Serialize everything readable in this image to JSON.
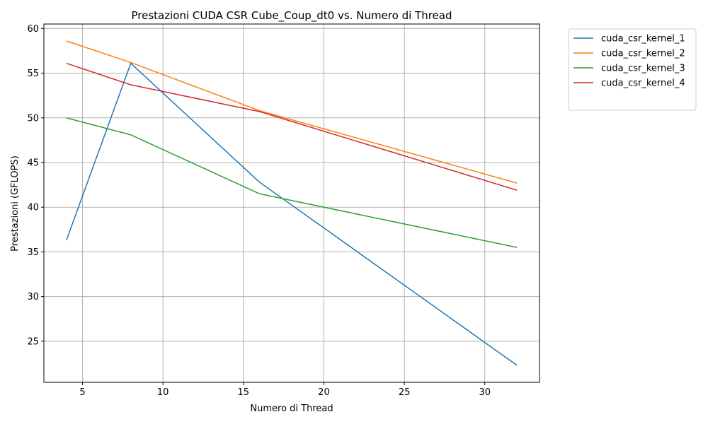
{
  "chart_data": {
    "type": "line",
    "title": "Prestazioni CUDA CSR Cube_Coup_dt0 vs. Numero di Thread",
    "xlabel": "Numero di Thread",
    "ylabel": "Prestazioni (GFLOPS)",
    "x": [
      4,
      8,
      16,
      32
    ],
    "xlim": [
      2.6,
      33.4
    ],
    "ylim": [
      20.4,
      60.5
    ],
    "xticks": [
      5,
      10,
      15,
      20,
      25,
      30
    ],
    "yticks": [
      25,
      30,
      35,
      40,
      45,
      50,
      55,
      60
    ],
    "grid": true,
    "legend_position": "outside-top-right",
    "series": [
      {
        "name": "cuda_csr_kernel_1",
        "color": "#1f77b4",
        "values": [
          36.3,
          56.1,
          42.8,
          22.3
        ]
      },
      {
        "name": "cuda_csr_kernel_2",
        "color": "#ff7f0e",
        "values": [
          58.6,
          56.2,
          50.8,
          42.7
        ]
      },
      {
        "name": "cuda_csr_kernel_3",
        "color": "#2ca02c",
        "values": [
          50.0,
          48.1,
          41.5,
          35.5
        ]
      },
      {
        "name": "cuda_csr_kernel_4",
        "color": "#d62728",
        "values": [
          56.1,
          53.7,
          50.7,
          41.9
        ]
      }
    ]
  }
}
